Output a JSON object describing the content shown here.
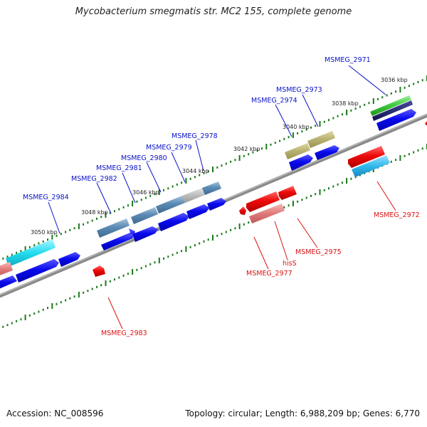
{
  "title": "Mycobacterium smegmatis str. MC2 155, complete genome",
  "footer": {
    "accession": "Accession: NC_008596",
    "summary": "Topology: circular; Length: 6,988,209 bp; Genes: 6,770"
  },
  "colors": {
    "forward_label": "#0a12c8",
    "reverse_label": "#dd1111",
    "backbone": "#8a8a8a",
    "tick": "#1a7a1a"
  },
  "ruler": {
    "kbp_labels": [
      "3036 kbp",
      "3038 kbp",
      "3040 kbp",
      "3042 kbp",
      "3044 kbp",
      "3046 kbp",
      "3048 kbp",
      "3050 kbp"
    ]
  },
  "forward_labels": [
    "MSMEG_2971",
    "MSMEG_2973",
    "MSMEG_2974",
    "MSMEG_2978",
    "MSMEG_2979",
    "MSMEG_2980",
    "MSMEG_2981",
    "MSMEG_2982",
    "MSMEG_2984"
  ],
  "reverse_labels": [
    "MSMEG_2972",
    "MSMEG_2975",
    "hisS",
    "MSMEG_2977",
    "MSMEG_2983"
  ]
}
